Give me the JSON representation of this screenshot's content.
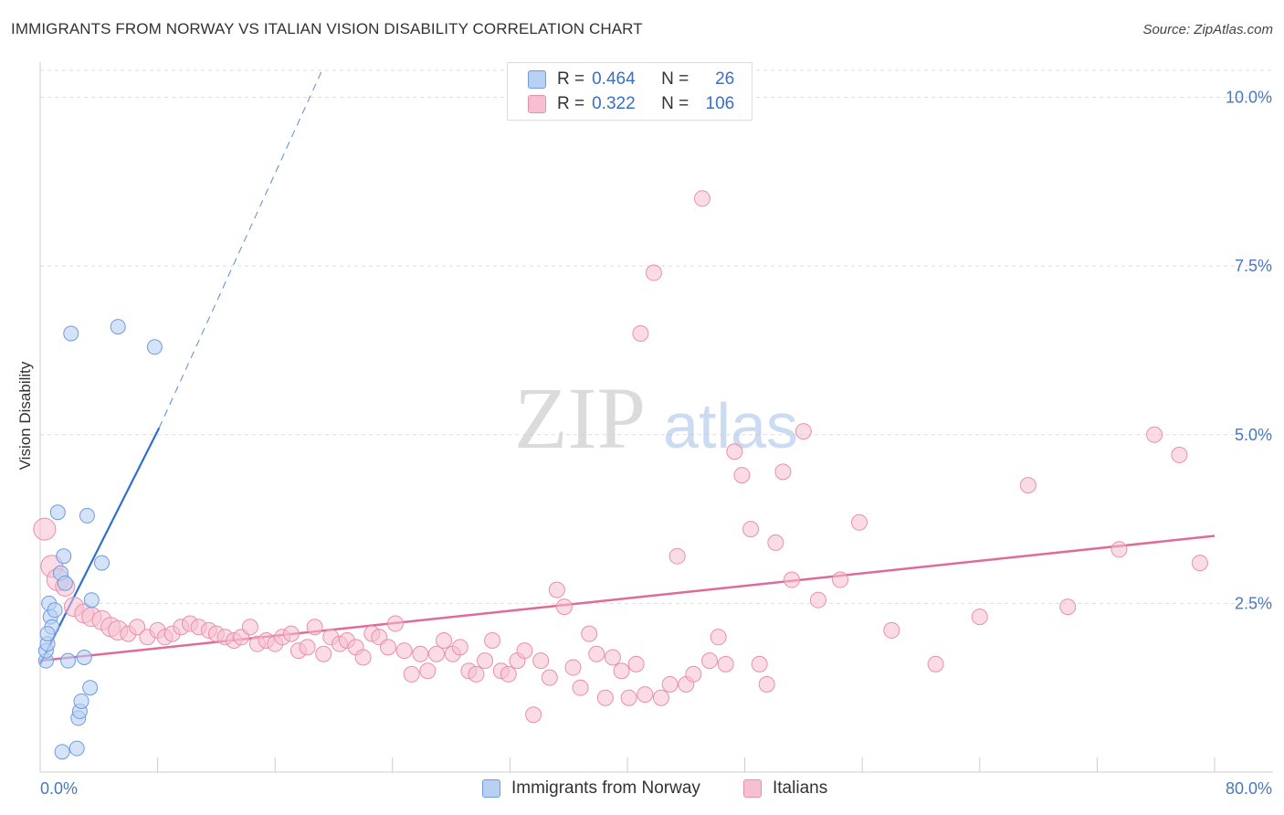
{
  "title": "IMMIGRANTS FROM NORWAY VS ITALIAN VISION DISABILITY CORRELATION CHART",
  "source": "Source: ZipAtlas.com",
  "watermark": {
    "zip": "ZIP",
    "atlas": "atlas"
  },
  "legend": {
    "rows": [
      {
        "r_label": "R =",
        "r_value": "0.464",
        "n_label": "N =",
        "n_value": "26"
      },
      {
        "r_label": "R =",
        "r_value": "0.322",
        "n_label": "N =",
        "n_value": "106"
      }
    ]
  },
  "bottom_legend": {
    "series_a": "Immigrants from Norway",
    "series_b": "Italians"
  },
  "colors": {
    "norway_fill": "#b8d0f2",
    "norway_stroke": "#6f9be0",
    "norway_line": "#2f6fd0",
    "italian_fill": "#f7c0d0",
    "italian_stroke": "#e890ab",
    "italian_line": "#e06a98",
    "tick": "#4a78c0",
    "grid": "#dddddd"
  },
  "chart_data": {
    "type": "scatter",
    "title": "IMMIGRANTS FROM NORWAY VS ITALIAN VISION DISABILITY CORRELATION CHART",
    "xlabel": "",
    "ylabel": "Vision Disability",
    "x_ticks": [
      "0.0%",
      "80.0%"
    ],
    "y_ticks": [
      "2.5%",
      "5.0%",
      "7.5%",
      "10.0%"
    ],
    "xlim": [
      0,
      80
    ],
    "ylim": [
      0,
      10.4
    ],
    "grid": true,
    "legend_position": "top-center",
    "series": [
      {
        "name": "Immigrants from Norway",
        "r": 0.464,
        "n": 26,
        "trend": {
          "x": [
            0,
            8.1
          ],
          "y": [
            1.6,
            5.1
          ],
          "dashed_extension_to": [
            19.2,
            10.4
          ]
        },
        "points": [
          [
            0.4,
            1.65
          ],
          [
            0.4,
            1.8
          ],
          [
            0.5,
            1.9
          ],
          [
            0.6,
            2.5
          ],
          [
            0.7,
            2.3
          ],
          [
            0.8,
            2.15
          ],
          [
            1.0,
            2.4
          ],
          [
            1.2,
            3.85
          ],
          [
            1.4,
            2.95
          ],
          [
            1.5,
            0.3
          ],
          [
            1.6,
            3.2
          ],
          [
            1.7,
            2.8
          ],
          [
            1.9,
            1.65
          ],
          [
            2.1,
            6.5
          ],
          [
            2.5,
            0.35
          ],
          [
            2.6,
            0.8
          ],
          [
            2.7,
            0.9
          ],
          [
            2.8,
            1.05
          ],
          [
            3.0,
            1.7
          ],
          [
            3.2,
            3.8
          ],
          [
            3.4,
            1.25
          ],
          [
            3.5,
            2.55
          ],
          [
            4.2,
            3.1
          ],
          [
            5.3,
            6.6
          ],
          [
            7.8,
            6.3
          ],
          [
            0.5,
            2.05
          ]
        ]
      },
      {
        "name": "Italians",
        "r": 0.322,
        "n": 106,
        "trend": {
          "x": [
            0,
            80
          ],
          "y": [
            1.65,
            3.5
          ]
        },
        "points": [
          [
            0.3,
            3.6
          ],
          [
            0.8,
            3.05
          ],
          [
            1.2,
            2.85
          ],
          [
            1.7,
            2.75
          ],
          [
            2.3,
            2.45
          ],
          [
            3.0,
            2.35
          ],
          [
            3.5,
            2.3
          ],
          [
            4.2,
            2.25
          ],
          [
            4.8,
            2.15
          ],
          [
            5.3,
            2.1
          ],
          [
            6.0,
            2.05
          ],
          [
            6.6,
            2.15
          ],
          [
            7.3,
            2.0
          ],
          [
            8.0,
            2.1
          ],
          [
            8.5,
            2.0
          ],
          [
            9.0,
            2.05
          ],
          [
            9.6,
            2.15
          ],
          [
            10.2,
            2.2
          ],
          [
            10.8,
            2.15
          ],
          [
            11.5,
            2.1
          ],
          [
            12.0,
            2.05
          ],
          [
            12.6,
            2.0
          ],
          [
            13.2,
            1.95
          ],
          [
            13.7,
            2.0
          ],
          [
            14.3,
            2.15
          ],
          [
            14.8,
            1.9
          ],
          [
            15.4,
            1.95
          ],
          [
            16.0,
            1.9
          ],
          [
            16.5,
            2.0
          ],
          [
            17.1,
            2.05
          ],
          [
            17.6,
            1.8
          ],
          [
            18.2,
            1.85
          ],
          [
            18.7,
            2.15
          ],
          [
            19.3,
            1.75
          ],
          [
            19.8,
            2.0
          ],
          [
            20.4,
            1.9
          ],
          [
            20.9,
            1.95
          ],
          [
            21.5,
            1.85
          ],
          [
            22.0,
            1.7
          ],
          [
            22.6,
            2.05
          ],
          [
            23.1,
            2.0
          ],
          [
            23.7,
            1.85
          ],
          [
            24.2,
            2.2
          ],
          [
            24.8,
            1.8
          ],
          [
            25.3,
            1.45
          ],
          [
            25.9,
            1.75
          ],
          [
            26.4,
            1.5
          ],
          [
            27.0,
            1.75
          ],
          [
            27.5,
            1.95
          ],
          [
            28.1,
            1.75
          ],
          [
            28.6,
            1.85
          ],
          [
            29.2,
            1.5
          ],
          [
            29.7,
            1.45
          ],
          [
            30.3,
            1.65
          ],
          [
            30.8,
            1.95
          ],
          [
            31.4,
            1.5
          ],
          [
            31.9,
            1.45
          ],
          [
            32.5,
            1.65
          ],
          [
            33.0,
            1.8
          ],
          [
            33.6,
            0.85
          ],
          [
            34.1,
            1.65
          ],
          [
            34.7,
            1.4
          ],
          [
            35.2,
            2.7
          ],
          [
            35.7,
            2.45
          ],
          [
            36.3,
            1.55
          ],
          [
            36.8,
            1.25
          ],
          [
            37.4,
            2.05
          ],
          [
            37.9,
            1.75
          ],
          [
            38.5,
            1.1
          ],
          [
            39.0,
            1.7
          ],
          [
            39.6,
            1.5
          ],
          [
            40.1,
            1.1
          ],
          [
            40.6,
            1.6
          ],
          [
            40.9,
            6.5
          ],
          [
            41.2,
            1.15
          ],
          [
            41.8,
            7.4
          ],
          [
            42.3,
            1.1
          ],
          [
            42.9,
            1.3
          ],
          [
            43.4,
            3.2
          ],
          [
            44.0,
            1.3
          ],
          [
            44.5,
            1.45
          ],
          [
            45.1,
            8.5
          ],
          [
            45.6,
            1.65
          ],
          [
            46.2,
            2.0
          ],
          [
            46.7,
            1.6
          ],
          [
            47.3,
            4.75
          ],
          [
            47.8,
            4.4
          ],
          [
            48.4,
            3.6
          ],
          [
            49.0,
            1.6
          ],
          [
            49.5,
            1.3
          ],
          [
            50.1,
            3.4
          ],
          [
            50.6,
            4.45
          ],
          [
            51.2,
            2.85
          ],
          [
            52.0,
            5.05
          ],
          [
            53.0,
            2.55
          ],
          [
            54.5,
            2.85
          ],
          [
            55.8,
            3.7
          ],
          [
            58.0,
            2.1
          ],
          [
            61.0,
            1.6
          ],
          [
            64.0,
            2.3
          ],
          [
            67.3,
            4.25
          ],
          [
            70.0,
            2.45
          ],
          [
            73.5,
            3.3
          ],
          [
            75.9,
            5.0
          ],
          [
            77.6,
            4.7
          ],
          [
            79.0,
            3.1
          ]
        ]
      }
    ]
  }
}
